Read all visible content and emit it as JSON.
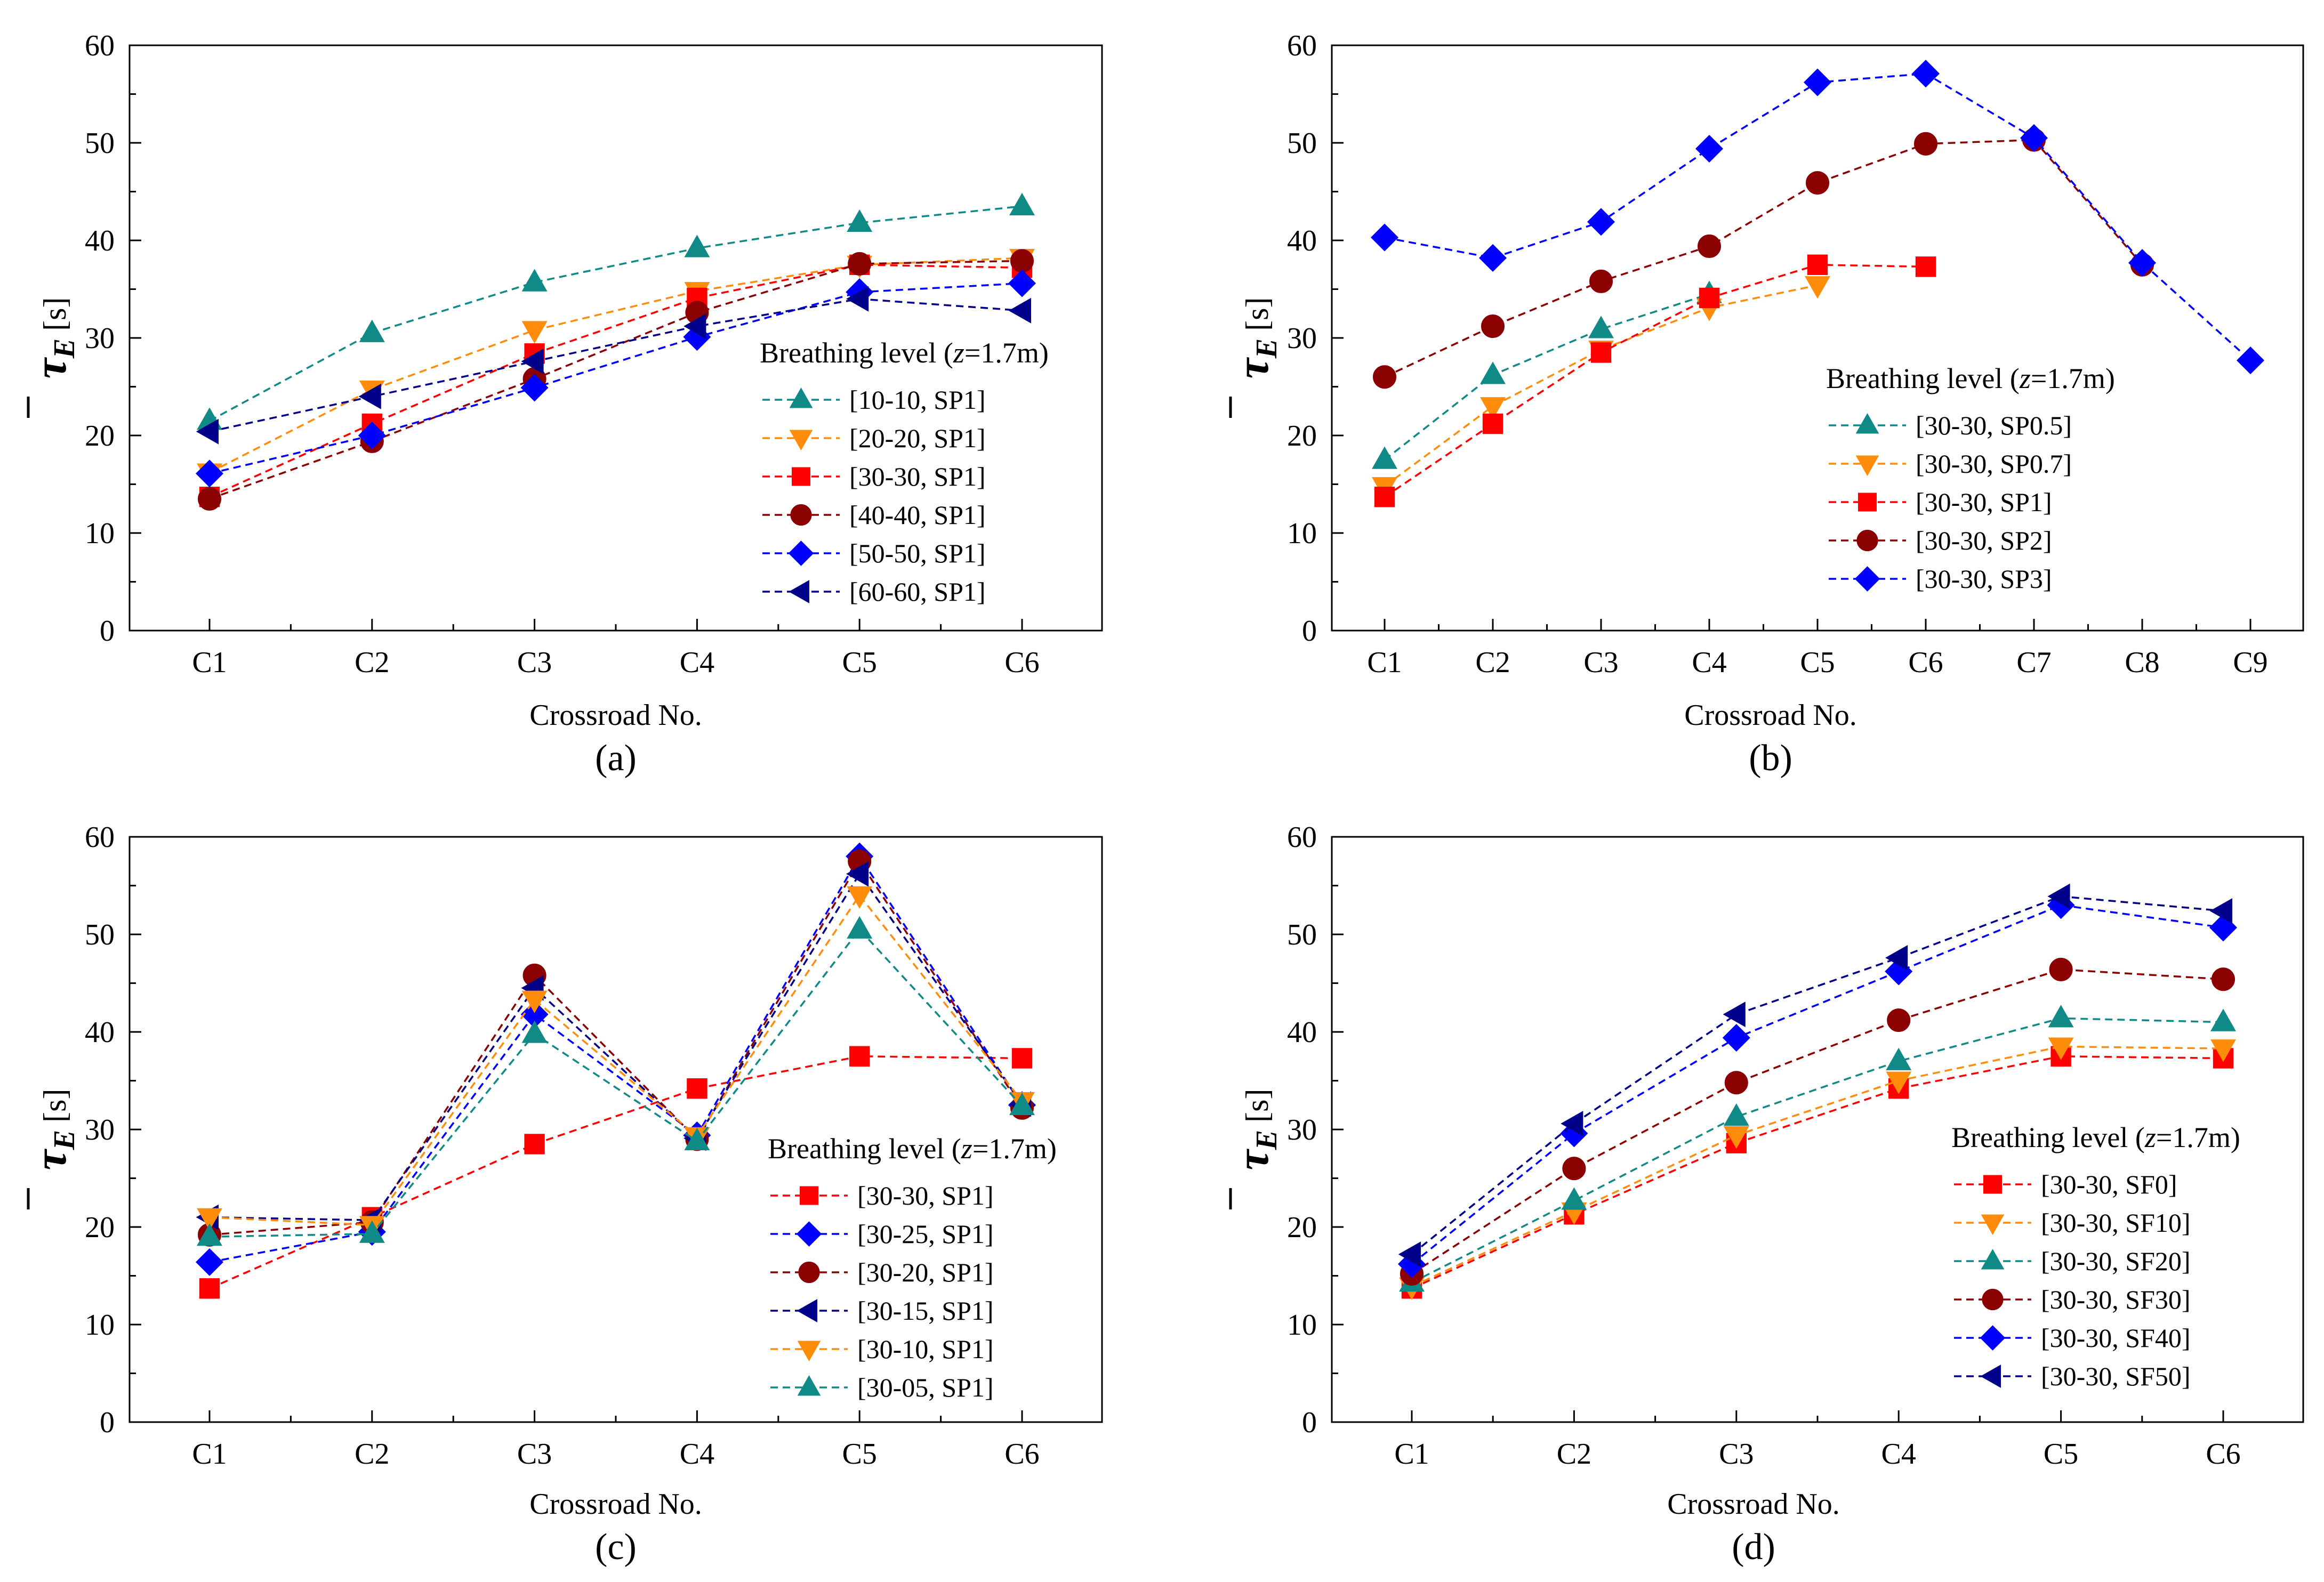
{
  "figure": {
    "panels": [
      "(a)",
      "(b)",
      "(c)",
      "(d)"
    ]
  },
  "chart_data": [
    {
      "type": "line",
      "panel_label": "(a)",
      "xlabel": "Crossroad No.",
      "ylabel_symbol": "τ",
      "ylabel_sub": "E",
      "ylabel_unit": "[s]",
      "ylim": [
        0,
        60
      ],
      "yticks": [
        "0",
        "10",
        "20",
        "30",
        "40",
        "50",
        "60"
      ],
      "categories": [
        "C1",
        "C2",
        "C3",
        "C4",
        "C5",
        "C6"
      ],
      "legend_title_prefix": "Breathing level (",
      "legend_title_var": "z",
      "legend_title_suffix": "=1.7m)",
      "legend_position": "right",
      "series": [
        {
          "name": "[10-10, SP1]",
          "color": "#0f8a87",
          "marker": "triangle-up",
          "values": [
            21.5,
            30.5,
            35.7,
            39.2,
            41.8,
            43.5
          ]
        },
        {
          "name": "[20-20, SP1]",
          "color": "#ff8c0a",
          "marker": "triangle-down",
          "values": [
            16.2,
            24.7,
            30.8,
            34.8,
            37.5,
            38.2
          ]
        },
        {
          "name": "[30-30, SP1]",
          "color": "#ff0000",
          "marker": "square",
          "values": [
            13.7,
            21.2,
            28.4,
            34.1,
            37.5,
            37.2
          ],
          "label_color": "#ff0000"
        },
        {
          "name": "[40-40, SP1]",
          "color": "#8b0000",
          "marker": "circle",
          "values": [
            13.5,
            19.4,
            25.8,
            32.6,
            37.6,
            37.9
          ]
        },
        {
          "name": "[50-50, SP1]",
          "color": "#0000ff",
          "marker": "diamond",
          "values": [
            16.1,
            20.0,
            24.9,
            30.1,
            34.7,
            35.6
          ]
        },
        {
          "name": "[60-60, SP1]",
          "color": "#00008b",
          "marker": "triangle-left",
          "values": [
            20.4,
            24.0,
            27.6,
            31.2,
            34.0,
            32.8
          ]
        }
      ]
    },
    {
      "type": "line",
      "panel_label": "(b)",
      "xlabel": "Crossroad No.",
      "ylabel_symbol": "τ",
      "ylabel_sub": "E",
      "ylabel_unit": "[s]",
      "ylim": [
        0,
        60
      ],
      "yticks": [
        "0",
        "10",
        "20",
        "30",
        "40",
        "50",
        "60"
      ],
      "categories": [
        "C1",
        "C2",
        "C3",
        "C4",
        "C5",
        "C6",
        "C7",
        "C8",
        "C9"
      ],
      "legend_title_prefix": "Breathing level (",
      "legend_title_var": "z",
      "legend_title_suffix": "=1.7m)",
      "legend_position": "lower-center",
      "series": [
        {
          "name": "[30-30, SP0.5]",
          "color": "#0f8a87",
          "marker": "triangle-up",
          "values": [
            17.5,
            26.2,
            30.9,
            34.5,
            null,
            null,
            null,
            null,
            null
          ]
        },
        {
          "name": "[30-30, SP0.7]",
          "color": "#ff8c0a",
          "marker": "triangle-down",
          "values": [
            14.8,
            23.0,
            28.8,
            33.1,
            35.4,
            null,
            null,
            null,
            null
          ]
        },
        {
          "name": "[30-30, SP1]",
          "color": "#ff0000",
          "marker": "square",
          "values": [
            13.7,
            21.2,
            28.5,
            34.1,
            37.5,
            37.3,
            null,
            null,
            null
          ],
          "label_color": "#ff0000"
        },
        {
          "name": "[30-30, SP2]",
          "color": "#8b0000",
          "marker": "circle",
          "values": [
            26.0,
            31.2,
            35.8,
            39.4,
            45.9,
            49.9,
            50.3,
            37.5,
            null
          ]
        },
        {
          "name": "[30-30, SP3]",
          "color": "#0000ff",
          "marker": "diamond",
          "values": [
            40.3,
            38.2,
            41.9,
            49.4,
            56.2,
            57.1,
            50.5,
            37.7,
            27.7
          ]
        }
      ]
    },
    {
      "type": "line",
      "panel_label": "(c)",
      "xlabel": "Crossroad No.",
      "ylabel_symbol": "τ",
      "ylabel_sub": "E",
      "ylabel_unit": "[s]",
      "ylim": [
        0,
        60
      ],
      "yticks": [
        "0",
        "10",
        "20",
        "30",
        "40",
        "50",
        "60"
      ],
      "categories": [
        "C1",
        "C2",
        "C3",
        "C4",
        "C5",
        "C6"
      ],
      "legend_title_prefix": "Breathing level (",
      "legend_title_var": "z",
      "legend_title_suffix": "=1.7m)",
      "legend_position": "right",
      "series": [
        {
          "name": "[30-30, SP1]",
          "color": "#ff0000",
          "marker": "square",
          "values": [
            13.7,
            21.0,
            28.5,
            34.2,
            37.5,
            37.3
          ],
          "label_color": "#ff0000"
        },
        {
          "name": "[30-25, SP1]",
          "color": "#0000ff",
          "marker": "diamond",
          "values": [
            16.4,
            19.5,
            41.8,
            29.4,
            58.0,
            32.5
          ]
        },
        {
          "name": "[30-20, SP1]",
          "color": "#8b0000",
          "marker": "circle",
          "values": [
            19.2,
            20.5,
            45.8,
            29.0,
            57.5,
            32.2
          ]
        },
        {
          "name": "[30-15, SP1]",
          "color": "#00008b",
          "marker": "triangle-left",
          "values": [
            21.0,
            20.7,
            44.5,
            29.1,
            56.2,
            32.6
          ]
        },
        {
          "name": "[30-10, SP1]",
          "color": "#ff8c0a",
          "marker": "triangle-down",
          "values": [
            21.0,
            20.2,
            43.3,
            29.3,
            54.0,
            32.9
          ]
        },
        {
          "name": "[30-05, SP1]",
          "color": "#0f8a87",
          "marker": "triangle-up",
          "values": [
            19.0,
            19.3,
            39.8,
            28.8,
            50.5,
            32.4
          ]
        }
      ]
    },
    {
      "type": "line",
      "panel_label": "(d)",
      "xlabel": "Crossroad No.",
      "ylabel_symbol": "τ",
      "ylabel_sub": "E",
      "ylabel_unit": "[s]",
      "ylim": [
        0,
        60
      ],
      "yticks": [
        "0",
        "10",
        "20",
        "30",
        "40",
        "50",
        "60"
      ],
      "categories": [
        "C1",
        "C2",
        "C3",
        "C4",
        "C5",
        "C6"
      ],
      "legend_title_prefix": "Breathing level (",
      "legend_title_var": "z",
      "legend_title_suffix": "=1.7m)",
      "legend_position": "lower-right",
      "series": [
        {
          "name": "[30-30, SF0]",
          "color": "#ff0000",
          "marker": "square",
          "values": [
            13.7,
            21.3,
            28.6,
            34.2,
            37.5,
            37.3
          ],
          "label_color": "#ff0000"
        },
        {
          "name": "[30-30, SF10]",
          "color": "#ff8c0a",
          "marker": "triangle-down",
          "values": [
            13.9,
            21.6,
            29.4,
            35.0,
            38.5,
            38.3
          ]
        },
        {
          "name": "[30-30, SF20]",
          "color": "#0f8a87",
          "marker": "triangle-up",
          "values": [
            14.3,
            22.7,
            31.3,
            37.0,
            41.4,
            41.0
          ]
        },
        {
          "name": "[30-30, SF30]",
          "color": "#8b0000",
          "marker": "circle",
          "values": [
            15.2,
            26.0,
            34.8,
            41.2,
            46.4,
            45.4
          ]
        },
        {
          "name": "[30-30, SF40]",
          "color": "#0000ff",
          "marker": "diamond",
          "values": [
            16.2,
            29.6,
            39.4,
            46.2,
            53.0,
            50.7
          ]
        },
        {
          "name": "[30-30, SF50]",
          "color": "#00008b",
          "marker": "triangle-left",
          "values": [
            17.2,
            30.6,
            41.8,
            47.6,
            53.9,
            52.4
          ]
        }
      ]
    }
  ]
}
